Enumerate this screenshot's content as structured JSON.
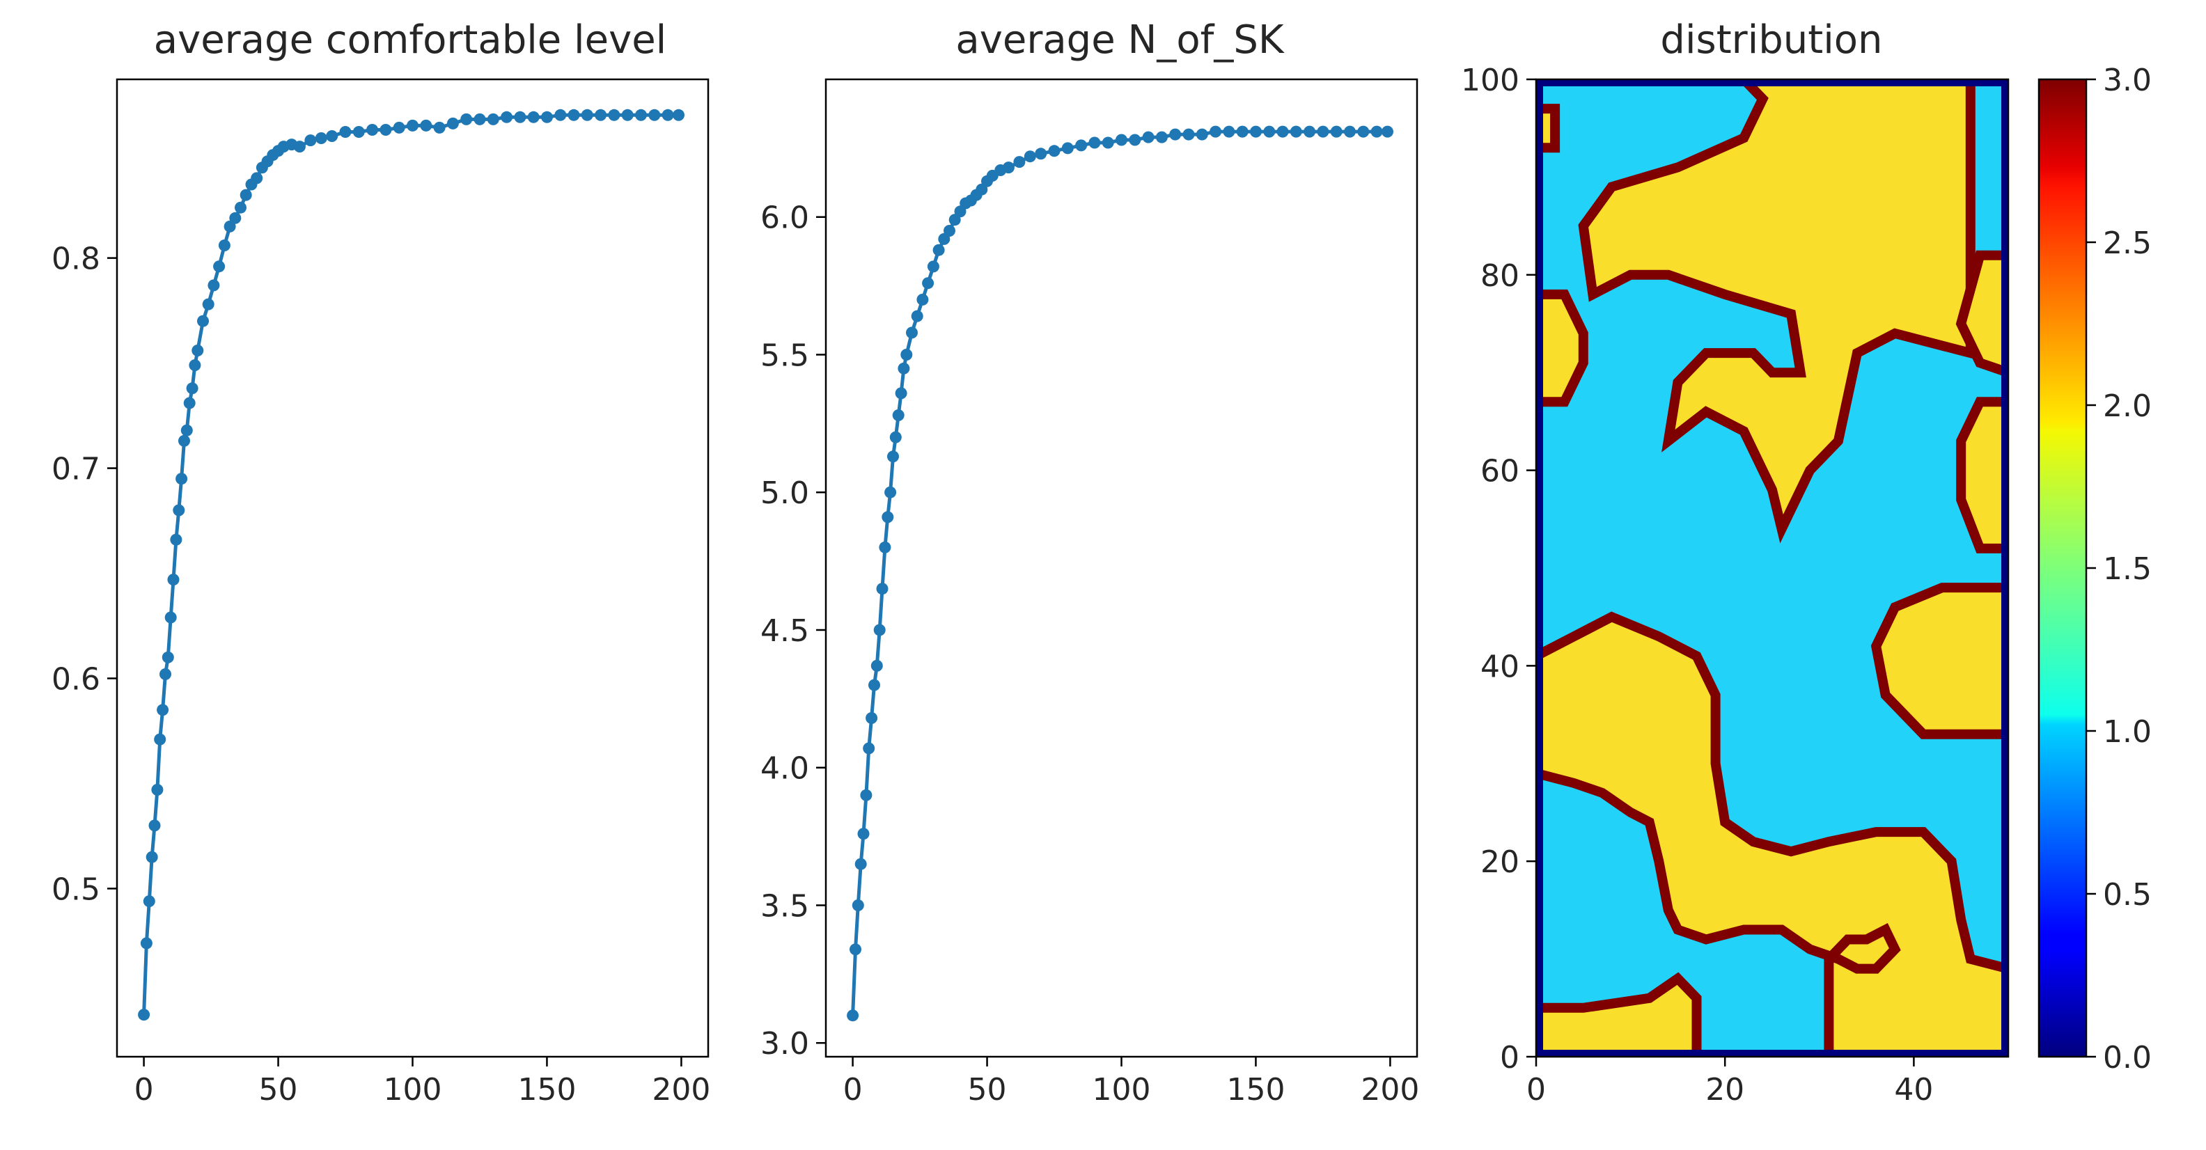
{
  "colors": {
    "series": "#1f77b4",
    "background": "#ffffff",
    "colormap": "jet",
    "region_value_1": "#22d2f8",
    "region_value_2": "#f9de2c",
    "boundary_value_3": "#7f0000",
    "edge_value_0": "#00007f"
  },
  "chart_data": [
    {
      "type": "line",
      "title": "average comfortable level",
      "marker": "dot",
      "xlim": [
        -10,
        210
      ],
      "ylim": [
        0.42,
        0.885
      ],
      "xticks": [
        0,
        50,
        100,
        150,
        200
      ],
      "yticks": [
        0.5,
        0.6,
        0.7,
        0.8
      ],
      "xtick_labels": [
        "0",
        "50",
        "100",
        "150",
        "200"
      ],
      "ytick_labels": [
        "0.5",
        "0.6",
        "0.7",
        "0.8"
      ],
      "x": [
        0,
        1,
        2,
        3,
        4,
        5,
        6,
        7,
        8,
        9,
        10,
        11,
        12,
        13,
        14,
        15,
        16,
        17,
        18,
        19,
        20,
        22,
        24,
        26,
        28,
        30,
        32,
        34,
        36,
        38,
        40,
        42,
        44,
        46,
        48,
        50,
        52,
        55,
        58,
        62,
        66,
        70,
        75,
        80,
        85,
        90,
        95,
        100,
        105,
        110,
        115,
        120,
        125,
        130,
        135,
        140,
        145,
        150,
        155,
        160,
        165,
        170,
        175,
        180,
        185,
        190,
        195,
        199
      ],
      "y": [
        0.44,
        0.474,
        0.494,
        0.515,
        0.53,
        0.547,
        0.571,
        0.585,
        0.602,
        0.61,
        0.629,
        0.647,
        0.666,
        0.68,
        0.695,
        0.713,
        0.718,
        0.731,
        0.738,
        0.749,
        0.756,
        0.77,
        0.778,
        0.787,
        0.796,
        0.806,
        0.815,
        0.819,
        0.824,
        0.83,
        0.835,
        0.838,
        0.843,
        0.846,
        0.849,
        0.851,
        0.853,
        0.854,
        0.853,
        0.856,
        0.857,
        0.858,
        0.86,
        0.86,
        0.861,
        0.861,
        0.862,
        0.863,
        0.863,
        0.862,
        0.864,
        0.866,
        0.866,
        0.866,
        0.867,
        0.867,
        0.867,
        0.867,
        0.868,
        0.868,
        0.868,
        0.868,
        0.868,
        0.868,
        0.868,
        0.868,
        0.868,
        0.868
      ]
    },
    {
      "type": "line",
      "title": "average N_of_SK",
      "marker": "dot",
      "xlim": [
        -10,
        210
      ],
      "ylim": [
        2.95,
        6.5
      ],
      "xticks": [
        0,
        50,
        100,
        150,
        200
      ],
      "yticks": [
        3.0,
        3.5,
        4.0,
        4.5,
        5.0,
        5.5,
        6.0
      ],
      "xtick_labels": [
        "0",
        "50",
        "100",
        "150",
        "200"
      ],
      "ytick_labels": [
        "3.0",
        "3.5",
        "4.0",
        "4.5",
        "5.0",
        "5.5",
        "6.0"
      ],
      "x": [
        0,
        1,
        2,
        3,
        4,
        5,
        6,
        7,
        8,
        9,
        10,
        11,
        12,
        13,
        14,
        15,
        16,
        17,
        18,
        19,
        20,
        22,
        24,
        26,
        28,
        30,
        32,
        34,
        36,
        38,
        40,
        42,
        44,
        46,
        48,
        50,
        52,
        55,
        58,
        62,
        66,
        70,
        75,
        80,
        85,
        90,
        95,
        100,
        105,
        110,
        115,
        120,
        125,
        130,
        135,
        140,
        145,
        150,
        155,
        160,
        165,
        170,
        175,
        180,
        185,
        190,
        195,
        199
      ],
      "y": [
        3.1,
        3.34,
        3.5,
        3.65,
        3.76,
        3.9,
        4.07,
        4.18,
        4.3,
        4.37,
        4.5,
        4.65,
        4.8,
        4.91,
        5.0,
        5.13,
        5.2,
        5.28,
        5.36,
        5.45,
        5.5,
        5.58,
        5.64,
        5.7,
        5.76,
        5.82,
        5.88,
        5.92,
        5.95,
        5.99,
        6.02,
        6.05,
        6.06,
        6.08,
        6.1,
        6.13,
        6.15,
        6.17,
        6.18,
        6.2,
        6.22,
        6.23,
        6.24,
        6.25,
        6.26,
        6.27,
        6.27,
        6.28,
        6.28,
        6.29,
        6.29,
        6.3,
        6.3,
        6.3,
        6.31,
        6.31,
        6.31,
        6.31,
        6.31,
        6.31,
        6.31,
        6.31,
        6.31,
        6.31,
        6.31,
        6.31,
        6.31,
        6.31
      ]
    },
    {
      "type": "heatmap",
      "title": "distribution",
      "colormap": "jet",
      "grid_size": [
        50,
        100
      ],
      "xlim": [
        0,
        50
      ],
      "ylim": [
        0,
        100
      ],
      "xticks": [
        0,
        20,
        40
      ],
      "yticks": [
        0,
        20,
        40,
        60,
        80,
        100
      ],
      "xtick_labels": [
        "0",
        "20",
        "40"
      ],
      "ytick_labels": [
        "0",
        "20",
        "40",
        "60",
        "80",
        "100"
      ],
      "value_range": [
        0,
        3
      ],
      "colorbar_ticks": [
        0.0,
        0.5,
        1.0,
        1.5,
        2.0,
        2.5,
        3.0
      ],
      "colorbar_tick_labels": [
        "0.0",
        "0.5",
        "1.0",
        "1.5",
        "2.0",
        "2.5",
        "3.0"
      ],
      "background_value": 1,
      "region_value": 2,
      "boundary_value": 3,
      "edge_value": 0,
      "regions_value_2": [
        [
          [
            22,
            100
          ],
          [
            46,
            100
          ],
          [
            46,
            72
          ],
          [
            38,
            74
          ],
          [
            34,
            72
          ],
          [
            32,
            63
          ],
          [
            29,
            60
          ],
          [
            26,
            54
          ],
          [
            25,
            58
          ],
          [
            22,
            64
          ],
          [
            18,
            66
          ],
          [
            14,
            63
          ],
          [
            15,
            69
          ],
          [
            18,
            72
          ],
          [
            23,
            72
          ],
          [
            25,
            70
          ],
          [
            28,
            70
          ],
          [
            27,
            76
          ],
          [
            20,
            78
          ],
          [
            14,
            80
          ],
          [
            10,
            80
          ],
          [
            6,
            78
          ],
          [
            5,
            85
          ],
          [
            8,
            89
          ],
          [
            15,
            91
          ],
          [
            22,
            94
          ],
          [
            24,
            98
          ]
        ],
        [
          [
            0,
            93
          ],
          [
            2,
            93
          ],
          [
            2,
            97
          ],
          [
            0,
            97
          ]
        ],
        [
          [
            0,
            67
          ],
          [
            3,
            67
          ],
          [
            5,
            71
          ],
          [
            5,
            74
          ],
          [
            3,
            78
          ],
          [
            0,
            78
          ]
        ],
        [
          [
            47,
            82
          ],
          [
            50,
            82
          ],
          [
            50,
            70
          ],
          [
            47,
            71
          ],
          [
            45,
            75
          ]
        ],
        [
          [
            50,
            52
          ],
          [
            47,
            52
          ],
          [
            45,
            57
          ],
          [
            45,
            63
          ],
          [
            47,
            67
          ],
          [
            50,
            67
          ]
        ],
        [
          [
            50,
            33
          ],
          [
            50,
            48
          ],
          [
            43,
            48
          ],
          [
            38,
            46
          ],
          [
            36,
            42
          ],
          [
            37,
            37
          ],
          [
            41,
            33
          ]
        ],
        [
          [
            0,
            0
          ],
          [
            0,
            5
          ],
          [
            5,
            5
          ],
          [
            12,
            6
          ],
          [
            15,
            8
          ],
          [
            17,
            6
          ],
          [
            17,
            0
          ]
        ],
        [
          [
            0,
            29
          ],
          [
            0,
            41
          ],
          [
            4,
            43
          ],
          [
            8,
            45
          ],
          [
            13,
            43
          ],
          [
            17,
            41
          ],
          [
            19,
            37
          ],
          [
            19,
            30
          ],
          [
            20,
            24
          ],
          [
            23,
            22
          ],
          [
            27,
            21
          ],
          [
            31,
            22
          ],
          [
            36,
            23
          ],
          [
            41,
            23
          ],
          [
            44,
            20
          ],
          [
            45,
            14
          ],
          [
            46,
            10
          ],
          [
            50,
            9
          ],
          [
            50,
            0
          ],
          [
            31,
            0
          ],
          [
            31,
            10
          ],
          [
            33,
            12
          ],
          [
            35,
            12
          ],
          [
            37,
            13
          ],
          [
            38,
            11
          ],
          [
            36,
            9
          ],
          [
            34,
            9
          ],
          [
            32,
            10
          ],
          [
            29,
            11
          ],
          [
            26,
            13
          ],
          [
            22,
            13
          ],
          [
            18,
            12
          ],
          [
            15,
            13
          ],
          [
            14,
            15
          ],
          [
            13,
            20
          ],
          [
            12,
            24
          ],
          [
            10,
            25
          ],
          [
            7,
            27
          ],
          [
            4,
            28
          ]
        ]
      ]
    }
  ]
}
